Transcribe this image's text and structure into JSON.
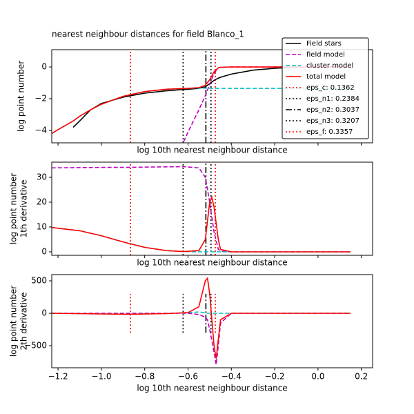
{
  "chart_data": [
    {
      "type": "line",
      "title": "nearest neighbour distances for field Blanco_1",
      "xlabel": "log 10th nearest neighbour distance",
      "ylabel": [
        "log point number"
      ],
      "xlim": [
        -1.229,
        0.252
      ],
      "ylim": [
        -4.78,
        1.09
      ],
      "xticks": [
        -1.2,
        -1.0,
        -0.8,
        -0.6,
        -0.4,
        -0.2,
        0,
        0.2
      ],
      "yticks": [
        {
          "value": -4,
          "label": "−4"
        },
        {
          "value": -2,
          "label": "−2"
        },
        0
      ],
      "x": [
        -1.23,
        -1.2,
        -1.13,
        -1.1,
        -1.05,
        -1.0,
        -0.9,
        -0.8,
        -0.7,
        -0.62,
        -0.6,
        -0.55,
        -0.52,
        -0.5,
        -0.48,
        -0.46,
        -0.45,
        -0.4,
        -0.3,
        -0.2,
        -0.1,
        0.0,
        0.15
      ],
      "series": [
        {
          "name": "Field stars",
          "color": "#000000",
          "dash": "solid",
          "values": [
            null,
            null,
            -3.8,
            -3.4,
            -2.7,
            -2.3,
            -1.9,
            -1.65,
            -1.5,
            -1.42,
            -1.4,
            -1.35,
            -1.25,
            -1.05,
            -0.85,
            -0.7,
            -0.65,
            -0.45,
            -0.2,
            -0.08,
            -0.02,
            0,
            0
          ]
        },
        {
          "name": "field model",
          "color": "#bf00bf",
          "dash": "dashed",
          "values": [
            null,
            null,
            null,
            null,
            null,
            null,
            null,
            null,
            null,
            -4.7,
            -4.1,
            -2.7,
            -1.8,
            -1.1,
            -0.4,
            -0.05,
            -0.02,
            0,
            0,
            0,
            0,
            0,
            0
          ]
        },
        {
          "name": "cluster model",
          "color": "#00bfbf",
          "dash": "dashed",
          "values": [
            -4.2,
            -3.95,
            -3.4,
            -3.1,
            -2.7,
            -2.35,
            -1.85,
            -1.55,
            -1.4,
            -1.36,
            -1.35,
            -1.33,
            -1.33,
            -1.34,
            -1.35,
            -1.35,
            -1.35,
            -1.35,
            -1.35,
            -1.35,
            -1.35,
            -1.35,
            -1.35
          ]
        },
        {
          "name": "total model",
          "color": "#ff0000",
          "dash": "solid",
          "values": [
            -4.2,
            -3.95,
            -3.4,
            -3.1,
            -2.7,
            -2.35,
            -1.85,
            -1.55,
            -1.4,
            -1.36,
            -1.35,
            -1.3,
            -1.15,
            -0.8,
            -0.3,
            -0.05,
            -0.02,
            0,
            0,
            0,
            0,
            0,
            0
          ]
        }
      ],
      "vlines": [
        {
          "name": "eps_c: 0.1362",
          "x": -0.8658,
          "color": "#ff0000",
          "dash": "dotted"
        },
        {
          "name": "eps_n1: 0.2384",
          "x": -0.6227,
          "color": "#000000",
          "dash": "dotted"
        },
        {
          "name": "eps_n2: 0.3037",
          "x": -0.5175,
          "color": "#000000",
          "dash": "dashdot"
        },
        {
          "name": "eps_n3: 0.3207",
          "x": -0.4939,
          "color": "#000000",
          "dash": "dotted"
        },
        {
          "name": "eps_f: 0.3357",
          "x": -0.474,
          "color": "#ff0000",
          "dash": "dotted"
        }
      ],
      "legend": "upper right"
    },
    {
      "type": "line",
      "xlabel": "log 10th nearest neighbour distance",
      "ylabel": [
        "log point number",
        "1th derivative"
      ],
      "xlim": [
        -1.229,
        0.252
      ],
      "ylim": [
        -1.4,
        36.1
      ],
      "xticks": [
        -1.2,
        -1.0,
        -0.8,
        -0.6,
        -0.4,
        -0.2,
        0,
        0.2
      ],
      "yticks": [
        0,
        10,
        20,
        30
      ],
      "x": [
        -1.23,
        -1.1,
        -1.0,
        -0.9,
        -0.8,
        -0.7,
        -0.62,
        -0.55,
        -0.52,
        -0.5,
        -0.49,
        -0.48,
        -0.46,
        -0.45,
        -0.4,
        0.15
      ],
      "series": [
        {
          "color": "#bf00bf",
          "dash": "dashed",
          "values": [
            33.8,
            33.9,
            34,
            34,
            34.1,
            34.2,
            34.3,
            33.8,
            30,
            20,
            14,
            8,
            1,
            0.3,
            0,
            0
          ]
        },
        {
          "color": "#00bfbf",
          "dash": "dashed",
          "values": [
            9.8,
            8.5,
            6.5,
            4,
            1.8,
            0.5,
            0.1,
            0,
            0,
            0,
            0,
            0,
            0,
            0,
            0,
            0
          ]
        },
        {
          "color": "#ff0000",
          "dash": "solid",
          "values": [
            9.8,
            8.5,
            6.5,
            4,
            1.8,
            0.5,
            0.1,
            0.5,
            5,
            20,
            22,
            18,
            5,
            1,
            0,
            0
          ]
        }
      ],
      "vlines": [
        {
          "x": -0.8658,
          "color": "#ff0000",
          "dash": "dotted"
        },
        {
          "x": -0.6227,
          "color": "#000000",
          "dash": "dotted"
        },
        {
          "x": -0.5175,
          "color": "#000000",
          "dash": "dashdot"
        },
        {
          "x": -0.4939,
          "color": "#000000",
          "dash": "dotted"
        },
        {
          "x": -0.474,
          "color": "#ff0000",
          "dash": "dotted"
        }
      ]
    },
    {
      "type": "line",
      "xlabel": "log 10th nearest neighbour distance",
      "ylabel": [
        "log point number",
        "2th derivative"
      ],
      "xlim": [
        -1.229,
        0.252
      ],
      "ylim": [
        -840,
        596
      ],
      "xticks": [
        {
          "value": -1.2,
          "label": "−1.2"
        },
        {
          "value": -1.0,
          "label": "−1.0"
        },
        {
          "value": -0.8,
          "label": "−0.8"
        },
        {
          "value": -0.6,
          "label": "−0.6"
        },
        {
          "value": -0.4,
          "label": "−0.4"
        },
        {
          "value": -0.2,
          "label": "−0.2"
        },
        {
          "value": 0,
          "label": "0.0"
        },
        {
          "value": 0.2,
          "label": "0.2"
        }
      ],
      "yticks": [
        {
          "value": -500,
          "label": "−500"
        },
        0,
        500
      ],
      "x": [
        -1.23,
        -1.0,
        -0.87,
        -0.7,
        -0.6,
        -0.55,
        -0.52,
        -0.51,
        -0.5,
        -0.48,
        -0.47,
        -0.46,
        -0.45,
        -0.4,
        0.15
      ],
      "series": [
        {
          "color": "#bf00bf",
          "dash": "dashed",
          "values": [
            0,
            0,
            0,
            0,
            0,
            -20,
            -60,
            -100,
            -250,
            -600,
            -790,
            -500,
            -150,
            0,
            0
          ]
        },
        {
          "color": "#00bfbf",
          "dash": "dashed",
          "values": [
            0,
            -10,
            -15,
            -5,
            10,
            20,
            10,
            0,
            0,
            0,
            0,
            0,
            0,
            0,
            0
          ]
        },
        {
          "color": "#ff0000",
          "dash": "solid",
          "values": [
            0,
            -10,
            -15,
            -5,
            10,
            100,
            500,
            540,
            300,
            -500,
            -700,
            -400,
            -100,
            0,
            0
          ]
        }
      ],
      "vline_ylim": [
        -300,
        300
      ],
      "vlines": [
        {
          "x": -0.8658,
          "color": "#ff0000",
          "dash": "dotted"
        },
        {
          "x": -0.6227,
          "color": "#000000",
          "dash": "dotted"
        },
        {
          "x": -0.5175,
          "color": "#000000",
          "dash": "dashdot"
        },
        {
          "x": -0.4939,
          "color": "#000000",
          "dash": "dotted"
        },
        {
          "x": -0.474,
          "color": "#ff0000",
          "dash": "dotted"
        }
      ]
    }
  ]
}
